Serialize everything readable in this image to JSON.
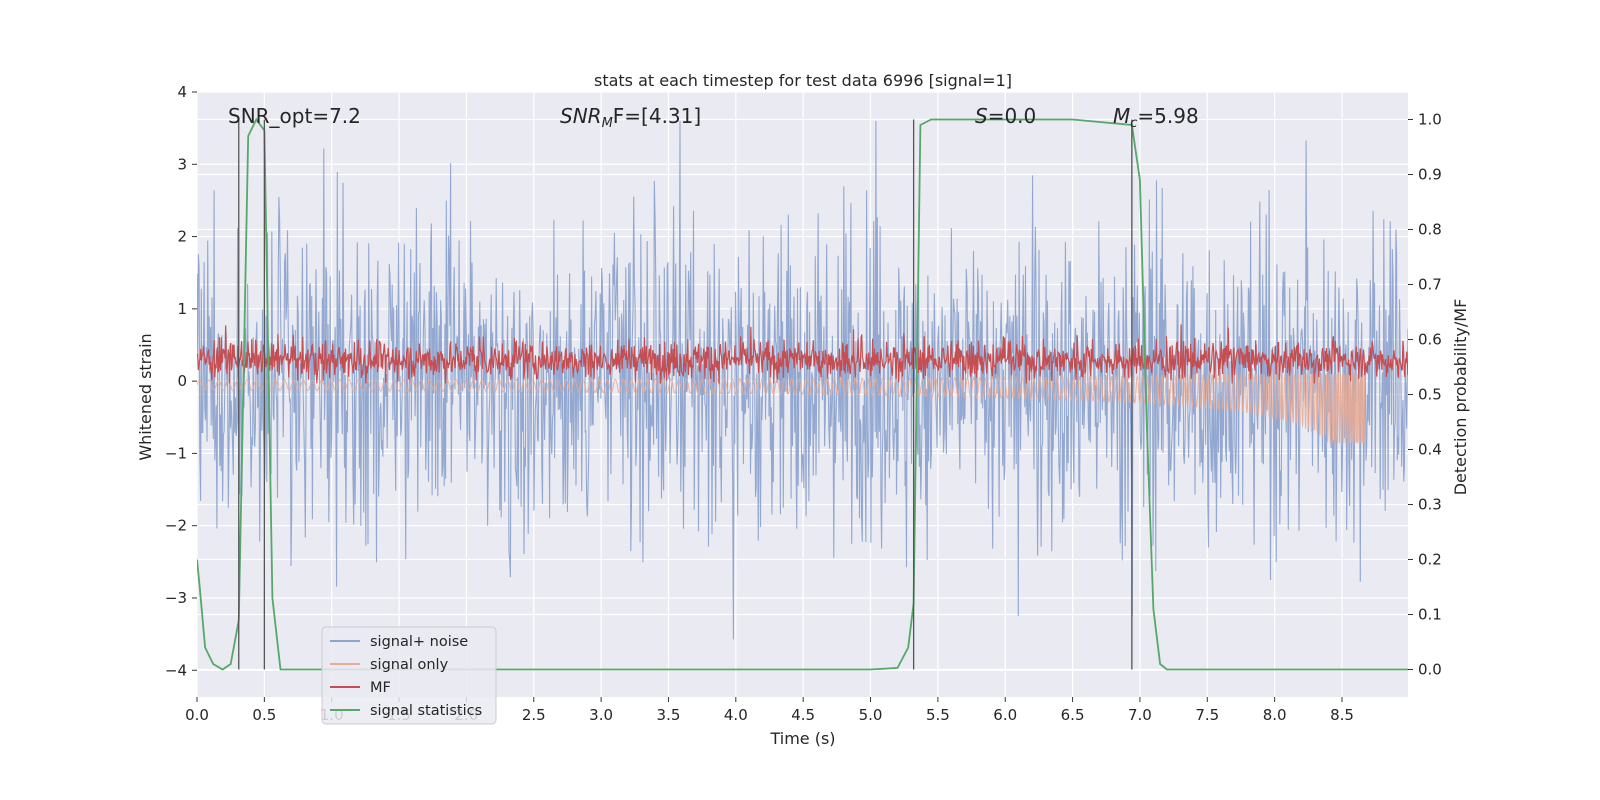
{
  "chart_data": {
    "type": "line",
    "title": "stats at each timestep for test data 6996 [signal=1]",
    "xlabel": "Time (s)",
    "ylabel_left": "Whitened strain",
    "ylabel_right": "Detection probability/MF",
    "xlim": [
      0.0,
      8.99
    ],
    "ylim_left": [
      -4.37,
      4.0
    ],
    "ylim_right": [
      -0.05,
      1.05
    ],
    "xticks": [
      0.0,
      0.5,
      1.0,
      1.5,
      2.0,
      2.5,
      3.0,
      3.5,
      4.0,
      4.5,
      5.0,
      5.5,
      6.0,
      6.5,
      7.0,
      7.5,
      8.0,
      8.5
    ],
    "xtick_labels": [
      "0.0",
      "0.5",
      "1.0",
      "1.5",
      "2.0",
      "2.5",
      "3.0",
      "3.5",
      "4.0",
      "4.5",
      "5.0",
      "5.5",
      "6.0",
      "6.5",
      "7.0",
      "7.5",
      "8.0",
      "8.5"
    ],
    "yticks_left": [
      -4,
      -3,
      -2,
      -1,
      0,
      1,
      2,
      3,
      4
    ],
    "ytick_labels_left": [
      "−4",
      "−3",
      "−2",
      "−1",
      "0",
      "1",
      "2",
      "3",
      "4"
    ],
    "yticks_right": [
      0.0,
      0.1,
      0.2,
      0.3,
      0.4,
      0.5,
      0.6,
      0.7,
      0.8,
      0.9,
      1.0
    ],
    "ytick_labels_right": [
      "0.0",
      "0.1",
      "0.2",
      "0.3",
      "0.4",
      "0.5",
      "0.6",
      "0.7",
      "0.8",
      "0.9",
      "1.0"
    ],
    "annotations": {
      "snr_opt": "SNR_opt=7.2",
      "snr_mf_pre": "SNR",
      "snr_mf_sub": "M",
      "snr_mf_post": "F=[4.31]",
      "s_var": "S",
      "s_val": "=0.0",
      "mc_var": "M",
      "mc_sub": "c",
      "mc_val": "=5.98"
    },
    "vertical_lines_x": [
      0.31,
      0.5,
      5.32,
      6.94
    ],
    "series": [
      {
        "name": "signal+ noise",
        "axis": "left",
        "color": "#8ea4cd",
        "description": "whitened noisy strain, approx uniform envelope between -2 and 2 with spikes to about +-3.5"
      },
      {
        "name": "signal only",
        "axis": "left",
        "color": "#e9a993",
        "description": "chirp signal, grows from about 0 to about -0.8 near t=8.67 s then stops"
      },
      {
        "name": "MF",
        "axis": "right",
        "color": "#c44e52",
        "description": "matched filter output fluctuating around 0.56 (range about 0.52-0.62) over the full time range"
      },
      {
        "name": "signal statistics",
        "axis": "right",
        "color": "#55a868",
        "x": [
          0.0,
          0.02,
          0.06,
          0.12,
          0.19,
          0.25,
          0.31,
          0.38,
          0.44,
          0.5,
          0.56,
          0.62,
          0.7,
          1.0,
          2.0,
          3.0,
          4.0,
          5.0,
          5.2,
          5.28,
          5.32,
          5.37,
          5.45,
          5.6,
          6.0,
          6.5,
          6.94,
          7.0,
          7.05,
          7.1,
          7.15,
          7.2,
          8.0,
          8.99
        ],
        "values": [
          0.2,
          0.15,
          0.04,
          0.01,
          0.0,
          0.01,
          0.09,
          0.97,
          1.0,
          0.98,
          0.13,
          0.0,
          0.0,
          0.0,
          0.0,
          0.0,
          0.0,
          0.0,
          0.003,
          0.04,
          0.12,
          0.99,
          1.0,
          1.0,
          1.0,
          1.0,
          0.99,
          0.89,
          0.45,
          0.11,
          0.01,
          0.0,
          0.0,
          0.0
        ]
      }
    ],
    "legend": {
      "location": "lower-left",
      "entries": [
        {
          "label": "signal+ noise",
          "color": "#8ea4cd"
        },
        {
          "label": "signal only",
          "color": "#e9a993"
        },
        {
          "label": "MF",
          "color": "#c44e52"
        },
        {
          "label": "signal statistics",
          "color": "#55a868"
        }
      ]
    },
    "colors": {
      "plot_background": "#eaeaf2",
      "grid": "#ffffff",
      "vertical_lines": "#555555"
    }
  }
}
